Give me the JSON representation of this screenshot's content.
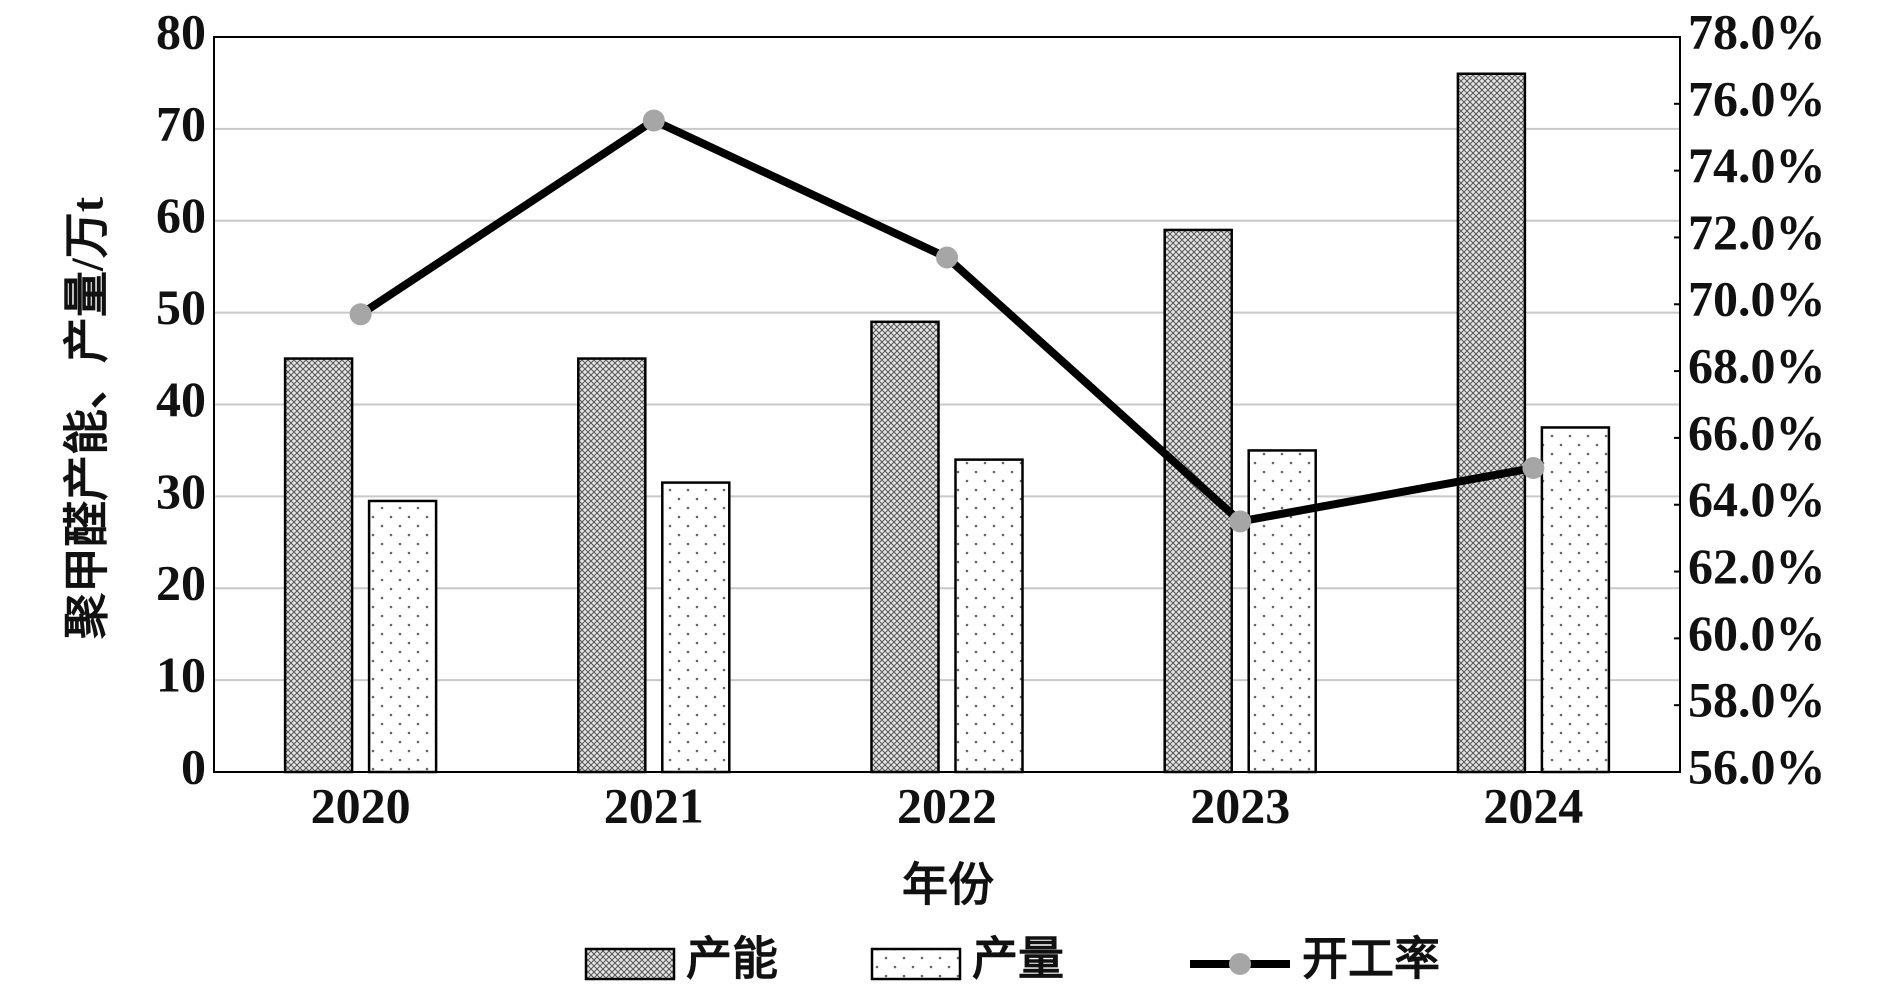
{
  "chart_data": {
    "type": "bar_line",
    "categories": [
      "2020",
      "2021",
      "2022",
      "2023",
      "2024"
    ],
    "x_label": "年份",
    "y_label": "聚甲醛产能、产量/万t",
    "series": [
      {
        "name": "产能",
        "type": "bar",
        "color": "#9a9a9a",
        "values": [
          45,
          45,
          49,
          59,
          76
        ]
      },
      {
        "name": "产量",
        "type": "bar",
        "color": "#9a9a9a",
        "values": [
          29.5,
          31.5,
          34,
          35,
          37.5
        ]
      },
      {
        "name": "开工率",
        "type": "line",
        "axis": "y2",
        "color": "#000000",
        "marker_color": "#a6a6a6",
        "values": [
          69.7,
          75.5,
          71.4,
          63.5,
          65.1
        ]
      }
    ],
    "ylim": [
      0,
      80
    ],
    "yticks": [
      0,
      10,
      20,
      30,
      40,
      50,
      60,
      70,
      80
    ],
    "y2lim": [
      56,
      78
    ],
    "y2ticks": [
      {
        "value": 56,
        "label": "56.0%"
      },
      {
        "value": 58,
        "label": "58.0%"
      },
      {
        "value": 60,
        "label": "60.0%"
      },
      {
        "value": 62,
        "label": "62.0%"
      },
      {
        "value": 64,
        "label": "64.0%"
      },
      {
        "value": 66,
        "label": "66.0%"
      },
      {
        "value": 68,
        "label": "68.0%"
      },
      {
        "value": 70,
        "label": "70.0%"
      },
      {
        "value": 72,
        "label": "72.0%"
      },
      {
        "value": 74,
        "label": "74.0%"
      },
      {
        "value": 76,
        "label": "76.0%"
      },
      {
        "value": 78,
        "label": "78.0%"
      }
    ],
    "grid": true,
    "legend": "bottom"
  }
}
